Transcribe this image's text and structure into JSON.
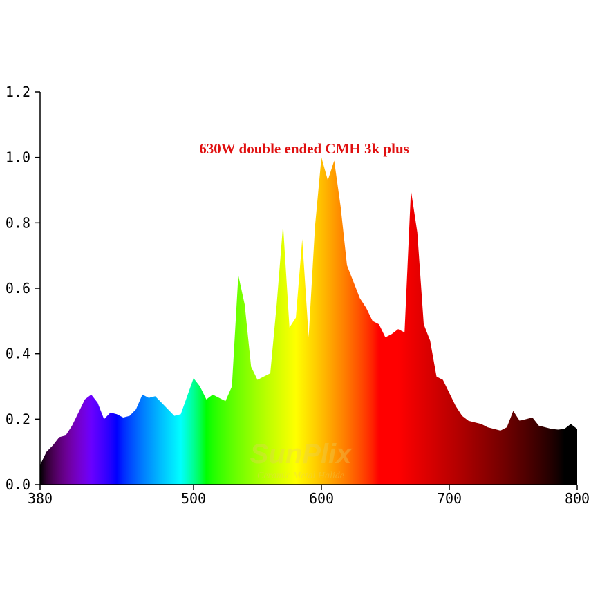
{
  "chart_data": {
    "type": "spectrum_area",
    "title": "630W double ended CMH 3k plus",
    "watermark": "SunPlix",
    "watermark_subtitle": "Ceramic Metal Halide",
    "x": [
      380,
      385,
      390,
      395,
      400,
      405,
      410,
      415,
      420,
      425,
      430,
      435,
      440,
      445,
      450,
      455,
      460,
      465,
      470,
      475,
      480,
      485,
      490,
      495,
      500,
      505,
      510,
      515,
      520,
      525,
      530,
      535,
      540,
      545,
      550,
      555,
      560,
      565,
      570,
      575,
      580,
      585,
      590,
      595,
      600,
      605,
      610,
      615,
      620,
      625,
      630,
      635,
      640,
      645,
      650,
      655,
      660,
      665,
      670,
      675,
      680,
      685,
      690,
      695,
      700,
      705,
      710,
      715,
      720,
      725,
      730,
      735,
      740,
      745,
      750,
      755,
      760,
      765,
      770,
      775,
      780,
      785,
      790,
      795,
      800
    ],
    "values": [
      0.06,
      0.1,
      0.12,
      0.145,
      0.15,
      0.18,
      0.22,
      0.26,
      0.275,
      0.25,
      0.2,
      0.22,
      0.215,
      0.205,
      0.21,
      0.23,
      0.275,
      0.265,
      0.27,
      0.25,
      0.23,
      0.21,
      0.215,
      0.27,
      0.325,
      0.3,
      0.26,
      0.275,
      0.265,
      0.255,
      0.3,
      0.64,
      0.55,
      0.36,
      0.32,
      0.33,
      0.34,
      0.55,
      0.795,
      0.48,
      0.51,
      0.75,
      0.45,
      0.79,
      1.0,
      0.93,
      0.99,
      0.85,
      0.67,
      0.62,
      0.57,
      0.54,
      0.5,
      0.49,
      0.45,
      0.46,
      0.475,
      0.465,
      0.9,
      0.77,
      0.49,
      0.44,
      0.33,
      0.32,
      0.28,
      0.24,
      0.21,
      0.195,
      0.19,
      0.185,
      0.175,
      0.17,
      0.165,
      0.175,
      0.225,
      0.195,
      0.2,
      0.205,
      0.18,
      0.175,
      0.17,
      0.168,
      0.17,
      0.185,
      0.17
    ],
    "xlim": [
      380,
      800
    ],
    "xticks": [
      380,
      500,
      600,
      700,
      800
    ],
    "ylim": [
      0,
      1.2
    ],
    "yticks": [
      {
        "value": 0,
        "label": "0.0"
      },
      0.2,
      0.4,
      0.6,
      0.8,
      {
        "value": 1,
        "label": "1.0"
      },
      1.2
    ]
  }
}
